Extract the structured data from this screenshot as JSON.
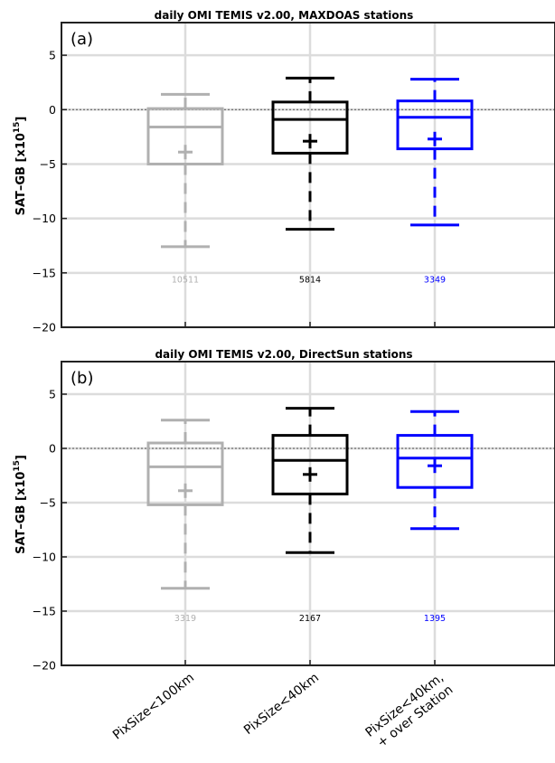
{
  "chart_data": [
    {
      "type": "box",
      "panel_label": "(a)",
      "title": "daily OMI TEMIS v2.00, MAXDOAS stations",
      "ylabel": "SAT–GB [x10",
      "ylabel_exponent": "15",
      "ylabel_suffix": "]",
      "ylim": [
        -20,
        8
      ],
      "yticks": [
        -20,
        -15,
        -10,
        -5,
        0,
        5
      ],
      "ytick_labels": [
        "−20",
        "−15",
        "−10",
        "−5",
        "0",
        "5"
      ],
      "grid": true,
      "zero_line": true,
      "categories": [
        "PixSize<100km",
        "PixSize<40km",
        "PixSize<40km,\n+ over Station"
      ],
      "boxes": [
        {
          "color": "#b0b0b0",
          "whisker_low": -12.6,
          "q1": -5.0,
          "median": -1.6,
          "q3": 0.1,
          "whisker_high": 1.4,
          "mean": -3.9,
          "n": "10511"
        },
        {
          "color": "#000000",
          "whisker_low": -11.0,
          "q1": -4.0,
          "median": -0.9,
          "q3": 0.7,
          "whisker_high": 2.9,
          "mean": -2.9,
          "n": "5814"
        },
        {
          "color": "#0000ff",
          "whisker_low": -10.6,
          "q1": -3.6,
          "median": -0.7,
          "q3": 0.8,
          "whisker_high": 2.8,
          "mean": -2.7,
          "n": "3349"
        }
      ]
    },
    {
      "type": "box",
      "panel_label": "(b)",
      "title": "daily OMI TEMIS v2.00, DirectSun stations",
      "ylabel": "SAT–GB [x10",
      "ylabel_exponent": "15",
      "ylabel_suffix": "]",
      "ylim": [
        -20,
        8
      ],
      "yticks": [
        -20,
        -15,
        -10,
        -5,
        0,
        5
      ],
      "ytick_labels": [
        "−20",
        "−15",
        "−10",
        "−5",
        "0",
        "5"
      ],
      "grid": true,
      "zero_line": true,
      "categories": [
        "PixSize<100km",
        "PixSize<40km",
        "PixSize<40km,\n+ over Station"
      ],
      "boxes": [
        {
          "color": "#b0b0b0",
          "whisker_low": -12.9,
          "q1": -5.2,
          "median": -1.7,
          "q3": 0.5,
          "whisker_high": 2.6,
          "mean": -3.9,
          "n": "3319"
        },
        {
          "color": "#000000",
          "whisker_low": -9.6,
          "q1": -4.2,
          "median": -1.1,
          "q3": 1.2,
          "whisker_high": 3.7,
          "mean": -2.4,
          "n": "2167"
        },
        {
          "color": "#0000ff",
          "whisker_low": -7.4,
          "q1": -3.6,
          "median": -0.9,
          "q3": 1.2,
          "whisker_high": 3.4,
          "mean": -1.6,
          "n": "1395"
        }
      ]
    }
  ],
  "x_category_labels": [
    {
      "lines": [
        "PixSize<100km"
      ]
    },
    {
      "lines": [
        "PixSize<40km"
      ]
    },
    {
      "lines": [
        "PixSize<40km,",
        "+ over Station"
      ]
    }
  ]
}
